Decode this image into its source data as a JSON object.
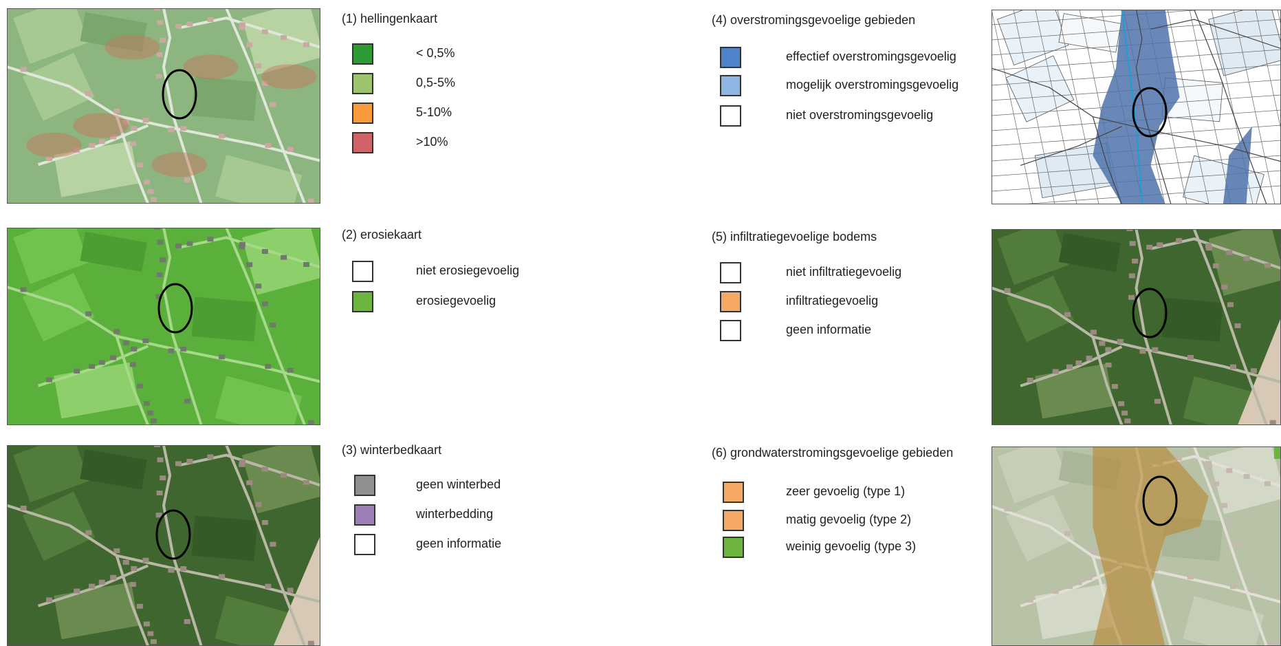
{
  "panels": [
    {
      "title": "(1) hellingenkaart",
      "legend": [
        {
          "label": "< 0,5%",
          "color": "#2e9a34"
        },
        {
          "label": "0,5-5%",
          "color": "#9cc46e"
        },
        {
          "label": "5-10%",
          "color": "#f89a3a"
        },
        {
          "label": ">10%",
          "color": "#cf6466"
        }
      ]
    },
    {
      "title": "(2) erosiekaart",
      "legend": [
        {
          "label": "niet erosiegevoelig",
          "color": "#ffffff"
        },
        {
          "label": "erosiegevoelig",
          "color": "#6db33f"
        }
      ]
    },
    {
      "title": "(3) winterbedkaart",
      "legend": [
        {
          "label": "geen winterbed",
          "color": "#8f8f8f"
        },
        {
          "label": "winterbedding",
          "color": "#9b7fb6"
        },
        {
          "label": "geen informatie",
          "color": "#ffffff"
        }
      ]
    },
    {
      "title": "(4) overstromingsgevoelige gebieden",
      "legend": [
        {
          "label": "effectief overstromingsgevoelig",
          "color": "#4f83cc"
        },
        {
          "label": "mogelijk overstromingsgevoelig",
          "color": "#8fb5e3"
        },
        {
          "label": "niet overstromingsgevoelig",
          "color": "#ffffff"
        }
      ]
    },
    {
      "title": "(5) infiltratiegevoelige bodems",
      "legend": [
        {
          "label": "niet infiltratiegevoelig",
          "color": "#ffffff"
        },
        {
          "label": "infiltratiegevoelig",
          "color": "#f6a866"
        },
        {
          "label": "geen informatie",
          "color": "#ffffff"
        }
      ]
    },
    {
      "title": "(6) grondwaterstromingsgevoelige gebieden",
      "legend": [
        {
          "label": "zeer gevoelig (type 1)",
          "color": "#f6a866"
        },
        {
          "label": "matig gevoelig (type 2)",
          "color": "#f6a866"
        },
        {
          "label": "weinig gevoelig (type 3)",
          "color": "#6db33f"
        }
      ]
    }
  ]
}
